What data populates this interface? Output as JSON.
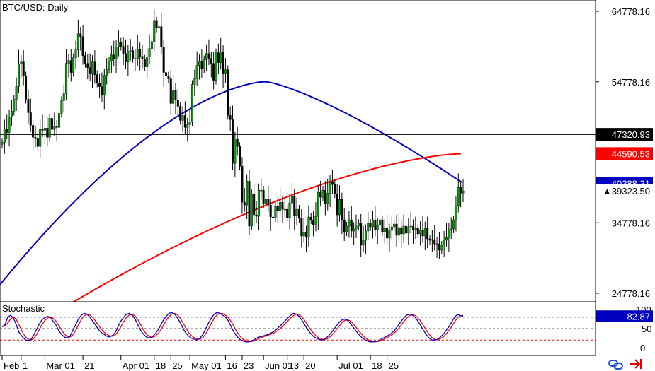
{
  "chart_data": {
    "type": "candlestick",
    "title": "BTC/USD: Daily",
    "price_axis": {
      "ticks": [
        64778.16,
        54778.16,
        34778.16,
        24778.16
      ],
      "tick_labels": [
        "64778.16",
        "54778.16",
        "34778.16",
        "24778.16"
      ],
      "range": [
        21000,
        67500
      ]
    },
    "x_axis": {
      "labels": [
        "Feb",
        "1",
        "Mar 01",
        "21",
        "Apr 01",
        "18",
        "25",
        "May 01",
        "16",
        "23",
        "Jun 01",
        "13",
        "20",
        "Jul 01",
        "18",
        "25"
      ],
      "label_positions_index": [
        0,
        8,
        18,
        34,
        50,
        64,
        71,
        79,
        94,
        101,
        110,
        120,
        127,
        141,
        155,
        162
      ]
    },
    "markers": {
      "horizontal_line": {
        "value": 47320.93,
        "label": "47320.93",
        "color": "#000000"
      },
      "ma_red": {
        "value": 44590.53,
        "label": "44590.53",
        "color": "#ff0000"
      },
      "ma_blue": {
        "value": 40388.31,
        "label": "40388.31",
        "color": "#0000c0"
      },
      "last_price": {
        "value": 39323.5,
        "label": "39323.50"
      }
    },
    "closes": [
      46200,
      48100,
      47600,
      49800,
      50600,
      52300,
      54100,
      57300,
      57600,
      55600,
      52300,
      50400,
      48600,
      46900,
      46800,
      45600,
      48100,
      47900,
      48200,
      46900,
      49600,
      48000,
      48400,
      48300,
      50300,
      52100,
      53100,
      57400,
      57800,
      56100,
      58200,
      59300,
      61600,
      61200,
      58500,
      57400,
      56800,
      55900,
      57600,
      55800,
      54600,
      54100,
      52900,
      55700,
      56500,
      57700,
      58600,
      58000,
      59700,
      60400,
      59800,
      58800,
      57600,
      59100,
      59200,
      58100,
      58000,
      59400,
      58400,
      58000,
      56900,
      58300,
      59500,
      60500,
      63400,
      62400,
      62600,
      59700,
      56100,
      55600,
      55200,
      51700,
      53600,
      52200,
      51300,
      49300,
      50000,
      48300,
      48700,
      49100,
      54400,
      55200,
      57100,
      57700,
      56600,
      57900,
      58800,
      58100,
      57400,
      55000,
      58900,
      57500,
      59000,
      55900,
      56500,
      50000,
      49400,
      43200,
      46700,
      45600,
      42800,
      37700,
      37300,
      40700,
      34300,
      38900,
      35900,
      35700,
      39400,
      39400,
      37500,
      38100,
      37300,
      35600,
      35500,
      37100,
      36500,
      37700,
      36700,
      36700,
      35500,
      37600,
      38600,
      35800,
      36700,
      35400,
      32900,
      33400,
      32700,
      35600,
      35200,
      34500,
      35700,
      39100,
      38400,
      39400,
      37500,
      39000,
      40600,
      40200,
      38900,
      35900,
      38100,
      35200,
      33500,
      34300,
      35200,
      33600,
      33900,
      34300,
      34700,
      31600,
      32300,
      33600,
      34700,
      34200,
      35200,
      33800,
      34500,
      35200,
      33500,
      34000,
      32600,
      33700,
      34200,
      34600,
      33000,
      34100,
      33200,
      34300,
      33300,
      34200,
      34300,
      33800,
      34000,
      33200,
      33700,
      32900,
      34000,
      32500,
      32300,
      32400,
      31800,
      31800,
      30900,
      31600,
      32300,
      32700,
      33800,
      33900,
      35200,
      37200,
      39800,
      39000,
      39300
    ],
    "sma_blue_endpoints": {
      "start": 26000,
      "peak": 54800,
      "end": 40388.31
    },
    "sma_red_endpoints": {
      "start": 23500,
      "end": 44590.53
    },
    "stochastic": {
      "label": "Stochastic",
      "levels": [
        100,
        80,
        50,
        20,
        0
      ],
      "level_labels": [
        "100",
        "50",
        "0"
      ],
      "current_label": "82.87",
      "k_color": "#0000c0",
      "d_color": "#ff0000",
      "k_values": [
        55,
        60,
        80,
        85,
        78,
        60,
        40,
        30,
        22,
        18,
        20,
        30,
        45,
        60,
        72,
        78,
        82,
        80,
        70,
        60,
        45,
        35,
        28,
        25,
        30,
        45,
        60,
        75,
        85,
        90,
        88,
        80,
        70,
        60,
        48,
        40,
        35,
        30,
        28,
        32,
        40,
        55,
        70,
        80,
        88,
        90,
        85,
        75,
        60,
        45,
        35,
        28,
        25,
        28,
        35,
        45,
        58,
        72,
        82,
        90,
        92,
        88,
        78,
        65,
        50,
        38,
        30,
        25,
        22,
        20,
        25,
        35,
        50,
        65,
        78,
        88,
        92,
        90,
        85,
        80,
        70,
        55,
        40,
        30,
        22,
        18,
        15,
        15,
        17,
        20,
        25,
        28,
        30,
        32,
        35,
        38,
        42,
        48,
        55,
        62,
        70,
        78,
        85,
        90,
        88,
        82,
        72,
        60,
        48,
        38,
        30,
        25,
        22,
        20,
        22,
        28,
        36,
        45,
        55,
        65,
        72,
        75,
        72,
        65,
        55,
        45,
        36,
        28,
        22,
        18,
        15,
        15,
        16,
        18,
        22,
        26,
        30,
        34,
        40,
        48,
        58,
        68,
        78,
        85,
        88,
        86,
        80,
        70,
        58,
        45,
        34,
        25,
        20,
        20,
        22,
        28,
        35,
        45,
        55,
        68,
        80,
        87,
        84,
        82.87
      ]
    },
    "corner_icons": [
      "sync-icon",
      "arrow-right-icon"
    ]
  }
}
